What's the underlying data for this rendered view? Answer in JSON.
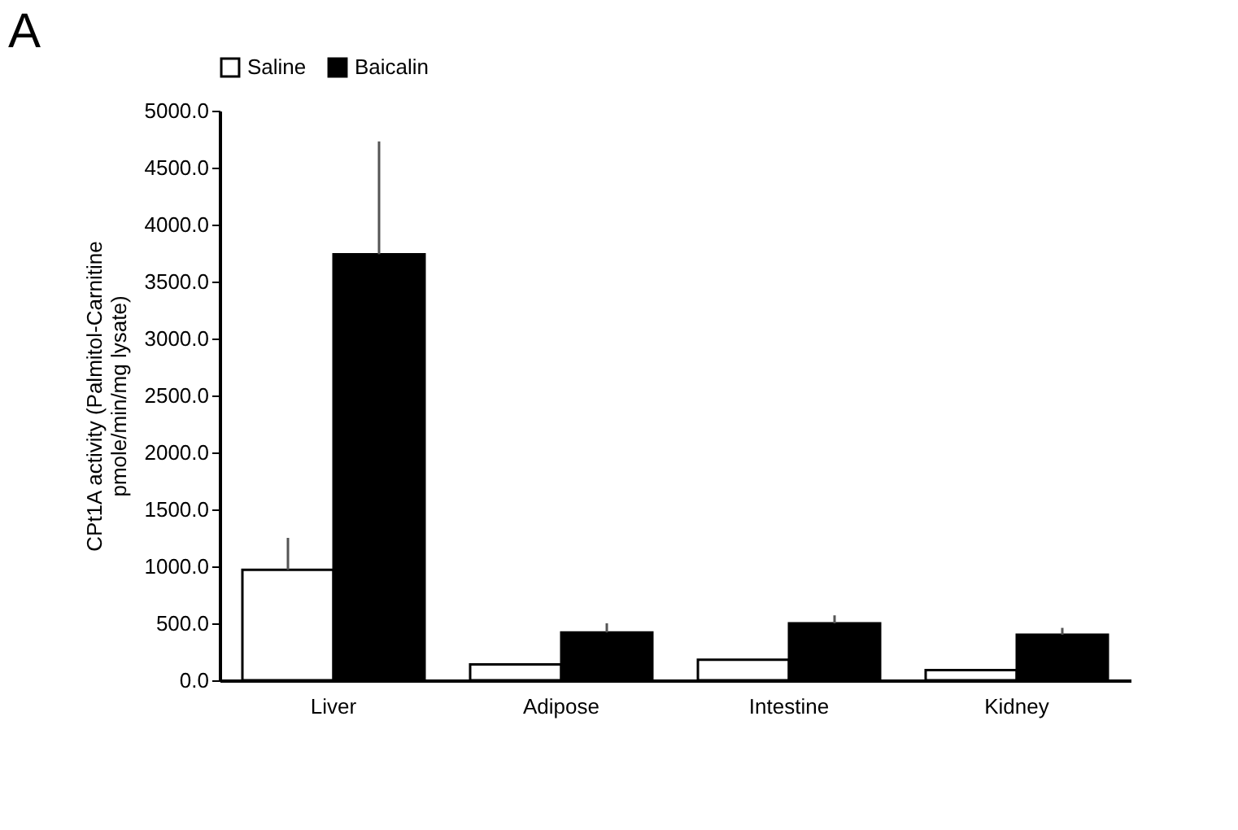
{
  "chart_data": {
    "type": "bar",
    "title": "A",
    "ylabel": "CPt1A activity (Palmitol-Carnitine pmole/min/mg lysate)",
    "categories": [
      "Liver",
      "Adipose",
      "Intestine",
      "Kidney"
    ],
    "series": [
      {
        "name": "Saline",
        "color": "#ffffff",
        "values": [
          970,
          140,
          180,
          90
        ],
        "errors": [
          [
            970,
            1250
          ],
          null,
          null,
          null
        ]
      },
      {
        "name": "Baicalin",
        "color": "#000000",
        "values": [
          3740,
          420,
          500,
          400
        ],
        "errors": [
          [
            3740,
            4730
          ],
          [
            420,
            500
          ],
          [
            500,
            570
          ],
          [
            400,
            460
          ]
        ]
      }
    ],
    "ylim": [
      0,
      5000
    ],
    "yticks": [
      {
        "value": 0,
        "label": "0.0"
      },
      {
        "value": 500,
        "label": "500.0"
      },
      {
        "value": 1000,
        "label": "1000.0"
      },
      {
        "value": 1500,
        "label": "1500.0"
      },
      {
        "value": 2000,
        "label": "2000.0"
      },
      {
        "value": 2500,
        "label": "2500.0"
      },
      {
        "value": 3000,
        "label": "3000.0"
      },
      {
        "value": 3500,
        "label": "3500.0"
      },
      {
        "value": 4000,
        "label": "4000.0"
      },
      {
        "value": 4500,
        "label": "4500.0"
      },
      {
        "value": 5000,
        "label": "5000.0"
      }
    ],
    "grid": false,
    "legend": "top"
  }
}
